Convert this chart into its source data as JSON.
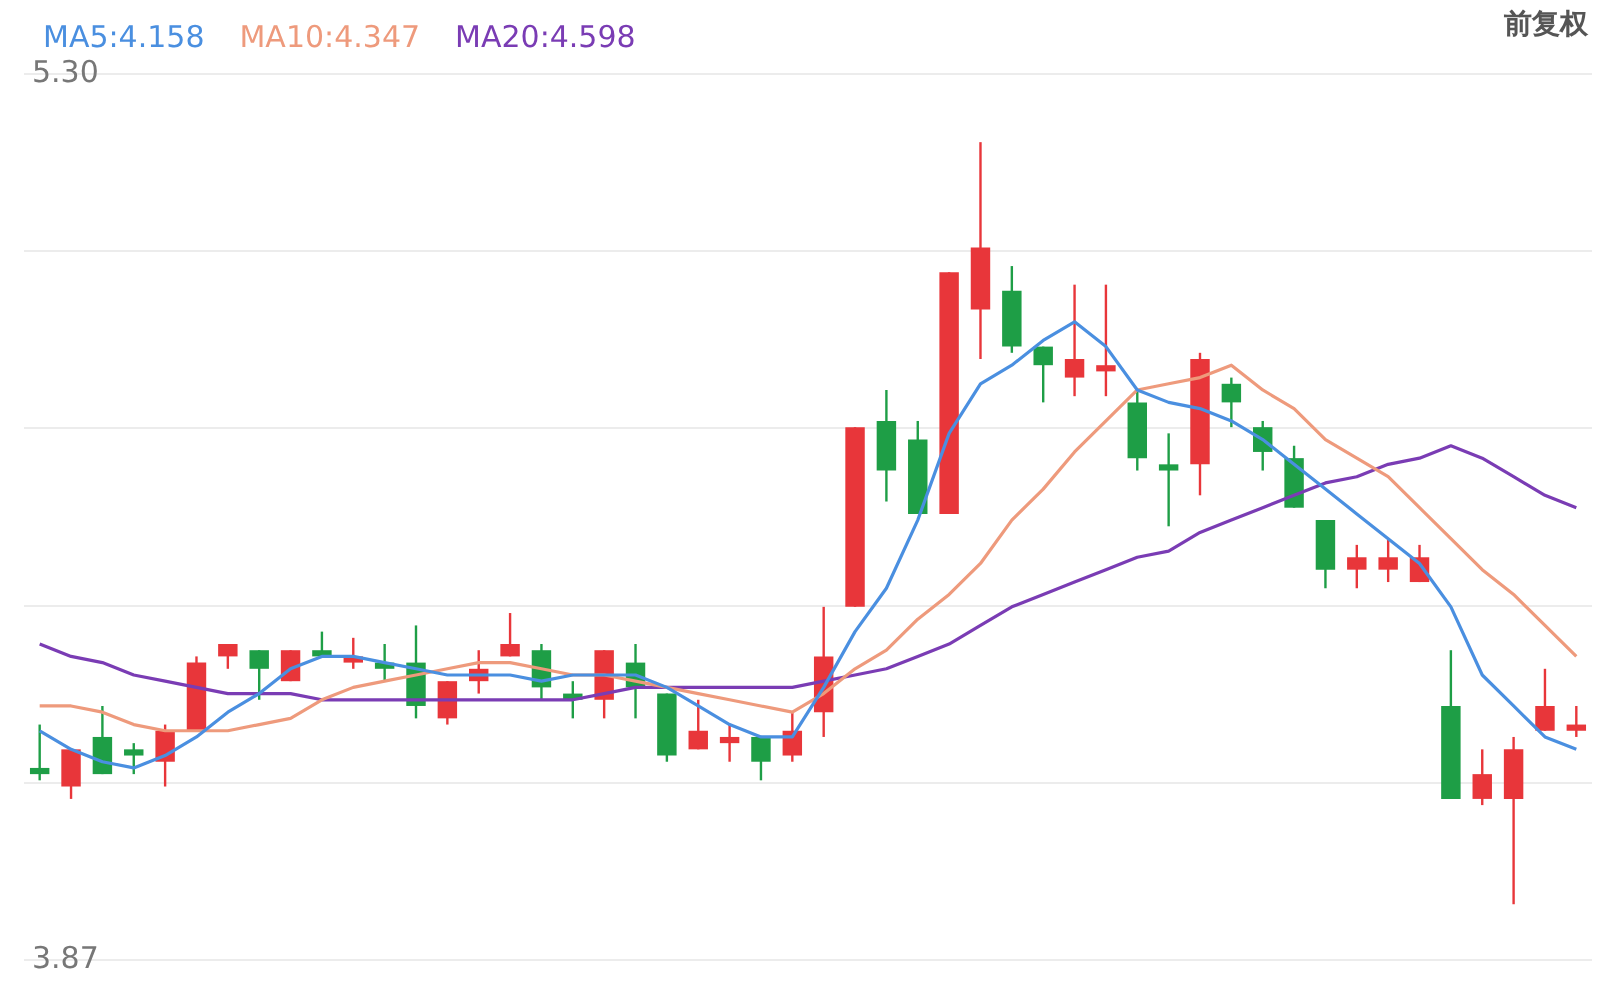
{
  "chart_data": {
    "type": "candlestick",
    "categories": [
      null,
      null,
      null,
      null,
      null,
      null,
      null,
      null,
      null,
      null,
      null,
      null,
      null,
      null,
      null,
      null,
      null,
      null,
      null,
      null,
      null,
      null,
      null,
      null,
      null,
      null,
      null,
      null,
      null,
      null,
      null,
      null,
      null,
      null,
      null,
      null,
      null,
      null,
      null,
      null,
      null,
      null,
      null,
      null,
      null,
      null,
      null,
      null,
      null,
      null
    ],
    "ohlc": [
      [
        4.18,
        4.25,
        4.16,
        4.17
      ],
      [
        4.15,
        4.21,
        4.13,
        4.21
      ],
      [
        4.23,
        4.28,
        4.17,
        4.17
      ],
      [
        4.21,
        4.22,
        4.17,
        4.2
      ],
      [
        4.19,
        4.25,
        4.15,
        4.24
      ],
      [
        4.24,
        4.36,
        4.24,
        4.35
      ],
      [
        4.36,
        4.38,
        4.34,
        4.38
      ],
      [
        4.37,
        4.37,
        4.29,
        4.34
      ],
      [
        4.32,
        4.37,
        4.32,
        4.37
      ],
      [
        4.37,
        4.4,
        4.36,
        4.36
      ],
      [
        4.35,
        4.39,
        4.34,
        4.36
      ],
      [
        4.35,
        4.38,
        4.32,
        4.34
      ],
      [
        4.35,
        4.41,
        4.26,
        4.28
      ],
      [
        4.26,
        4.32,
        4.25,
        4.32
      ],
      [
        4.32,
        4.37,
        4.3,
        4.34
      ],
      [
        4.36,
        4.43,
        4.36,
        4.38
      ],
      [
        4.37,
        4.38,
        4.29,
        4.31
      ],
      [
        4.3,
        4.32,
        4.26,
        4.29
      ],
      [
        4.29,
        4.37,
        4.26,
        4.37
      ],
      [
        4.35,
        4.38,
        4.26,
        4.31
      ],
      [
        4.3,
        4.3,
        4.19,
        4.2
      ],
      [
        4.21,
        4.29,
        4.21,
        4.24
      ],
      [
        4.22,
        4.25,
        4.19,
        4.23
      ],
      [
        4.23,
        4.23,
        4.16,
        4.19
      ],
      [
        4.2,
        4.27,
        4.19,
        4.24
      ],
      [
        4.27,
        4.44,
        4.23,
        4.36
      ],
      [
        4.44,
        4.73,
        4.44,
        4.73
      ],
      [
        4.74,
        4.79,
        4.61,
        4.66
      ],
      [
        4.71,
        4.74,
        4.59,
        4.59
      ],
      [
        4.59,
        4.98,
        4.59,
        4.98
      ],
      [
        4.92,
        5.19,
        4.84,
        5.02
      ],
      [
        4.95,
        4.99,
        4.85,
        4.86
      ],
      [
        4.86,
        4.86,
        4.77,
        4.83
      ],
      [
        4.81,
        4.96,
        4.78,
        4.84
      ],
      [
        4.82,
        4.96,
        4.78,
        4.83
      ],
      [
        4.77,
        4.79,
        4.66,
        4.68
      ],
      [
        4.67,
        4.72,
        4.57,
        4.66
      ],
      [
        4.67,
        4.85,
        4.62,
        4.84
      ],
      [
        4.8,
        4.81,
        4.73,
        4.77
      ],
      [
        4.73,
        4.74,
        4.66,
        4.69
      ],
      [
        4.68,
        4.7,
        4.6,
        4.6
      ],
      [
        4.58,
        4.58,
        4.47,
        4.5
      ],
      [
        4.5,
        4.54,
        4.47,
        4.52
      ],
      [
        4.5,
        4.55,
        4.48,
        4.52
      ],
      [
        4.48,
        4.54,
        4.48,
        4.52
      ],
      [
        4.28,
        4.37,
        4.13,
        4.13
      ],
      [
        4.13,
        4.21,
        4.12,
        4.17
      ],
      [
        4.13,
        4.23,
        3.96,
        4.21
      ],
      [
        4.24,
        4.34,
        4.24,
        4.28
      ],
      [
        4.24,
        4.28,
        4.23,
        4.25
      ]
    ],
    "colors": [
      "#1e9e46",
      "#e8363a",
      "#1e9e46",
      "#1e9e46",
      "#e8363a",
      "#e8363a",
      "#e8363a",
      "#1e9e46",
      "#e8363a",
      "#1e9e46",
      "#e8363a",
      "#1e9e46",
      "#1e9e46",
      "#e8363a",
      "#e8363a",
      "#e8363a",
      "#1e9e46",
      "#1e9e46",
      "#e8363a",
      "#1e9e46",
      "#1e9e46",
      "#e8363a",
      "#e8363a",
      "#1e9e46",
      "#e8363a",
      "#e8363a",
      "#e8363a",
      "#1e9e46",
      "#1e9e46",
      "#e8363a",
      "#e8363a",
      "#1e9e46",
      "#1e9e46",
      "#e8363a",
      "#e8363a",
      "#1e9e46",
      "#1e9e46",
      "#e8363a",
      "#1e9e46",
      "#1e9e46",
      "#1e9e46",
      "#1e9e46",
      "#e8363a",
      "#e8363a",
      "#e8363a",
      "#1e9e46",
      "#e8363a",
      "#e8363a",
      "#e8363a",
      "#e8363a"
    ],
    "series": [
      {
        "type": "line",
        "name": "MA5:4.158",
        "color": "#4a8fe0",
        "values": [
          4.24,
          4.21,
          4.19,
          4.18,
          4.2,
          4.23,
          4.27,
          4.3,
          4.34,
          4.36,
          4.36,
          4.35,
          4.34,
          4.33,
          4.33,
          4.33,
          4.32,
          4.33,
          4.33,
          4.33,
          4.31,
          4.28,
          4.25,
          4.23,
          4.23,
          4.31,
          4.4,
          4.47,
          4.58,
          4.72,
          4.8,
          4.83,
          4.87,
          4.9,
          4.86,
          4.79,
          4.77,
          4.76,
          4.74,
          4.71,
          4.67,
          4.63,
          4.59,
          4.55,
          4.51,
          4.44,
          4.33,
          4.28,
          4.23,
          4.21
        ]
      },
      {
        "type": "line",
        "name": "MA10:4.347",
        "color": "#ee9a7c",
        "values": [
          4.28,
          4.28,
          4.27,
          4.25,
          4.24,
          4.24,
          4.24,
          4.25,
          4.26,
          4.29,
          4.31,
          4.32,
          4.33,
          4.34,
          4.35,
          4.35,
          4.34,
          4.33,
          4.33,
          4.32,
          4.31,
          4.3,
          4.29,
          4.28,
          4.27,
          4.3,
          4.34,
          4.37,
          4.42,
          4.46,
          4.51,
          4.58,
          4.63,
          4.69,
          4.74,
          4.79,
          4.8,
          4.81,
          4.83,
          4.79,
          4.76,
          4.71,
          4.68,
          4.65,
          4.6,
          4.55,
          4.5,
          4.46,
          4.41,
          4.36
        ]
      },
      {
        "type": "line",
        "name": "MA20:4.598",
        "color": "#7a3cb4",
        "values": [
          4.38,
          4.36,
          4.35,
          4.33,
          4.32,
          4.31,
          4.3,
          4.3,
          4.3,
          4.29,
          4.29,
          4.29,
          4.29,
          4.29,
          4.29,
          4.29,
          4.29,
          4.29,
          4.3,
          4.31,
          4.31,
          4.31,
          4.31,
          4.31,
          4.31,
          4.32,
          4.33,
          4.34,
          4.36,
          4.38,
          4.41,
          4.44,
          4.46,
          4.48,
          4.5,
          4.52,
          4.53,
          4.56,
          4.58,
          4.6,
          4.62,
          4.64,
          4.65,
          4.67,
          4.68,
          4.7,
          4.68,
          4.65,
          4.62,
          4.6
        ]
      }
    ],
    "ylim": [
      3.87,
      5.3
    ],
    "yticks": [
      {
        "value": 5.3,
        "label": "5.30"
      },
      {
        "value": 5.014,
        "label": null
      },
      {
        "value": 4.728,
        "label": null
      },
      {
        "value": 4.442,
        "label": null
      },
      {
        "value": 4.156,
        "label": null
      },
      3.87
    ],
    "grid": "y",
    "legend": "top left",
    "tick_labels": "y",
    "marker": "none",
    "line_style": "solid",
    "annotations": [
      "前复权"
    ]
  }
}
